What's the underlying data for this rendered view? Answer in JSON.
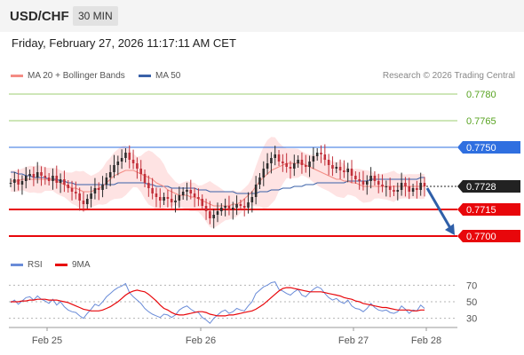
{
  "header": {
    "pair": "USD/CHF",
    "timeframe": "30 MIN",
    "datetime": "Friday, February 27, 2026 11:17:11 AM CET"
  },
  "legend": {
    "ma20": "MA 20 + Bollinger Bands",
    "ma50": "MA 50",
    "copyright": "Research © 2026 Trading Central"
  },
  "rsi_legend": {
    "rsi": "RSI",
    "ma": "9MA"
  },
  "colors": {
    "ma20": "#f48c84",
    "bands": "#fdd9da",
    "ma50": "#3a61a8",
    "resistance": "#9ccd72",
    "pivot": "#2f6fe0",
    "support": "#e8070b",
    "last": "#222222",
    "candle_up": "#2d2d2d",
    "candle_down": "#c2303a",
    "arrow": "#2f5fa8"
  },
  "chart_data": [
    {
      "type": "candlestick",
      "title": "USD/CHF",
      "x_ticks": [
        "Feb 25",
        "Feb 26",
        "Feb 27",
        "Feb 28"
      ],
      "ylim": [
        0.769,
        0.7788
      ],
      "levels": [
        {
          "label": "0.7780",
          "value": 0.778,
          "kind": "resistance"
        },
        {
          "label": "0.7765",
          "value": 0.7765,
          "kind": "resistance"
        },
        {
          "label": "0.7750",
          "value": 0.775,
          "kind": "pivot"
        },
        {
          "label": "0.7728",
          "value": 0.7728,
          "kind": "last"
        },
        {
          "label": "0.7715",
          "value": 0.7715,
          "kind": "support"
        },
        {
          "label": "0.7700",
          "value": 0.77,
          "kind": "support"
        }
      ],
      "close": [
        0.773,
        0.7732,
        0.7729,
        0.7731,
        0.7734,
        0.7735,
        0.7733,
        0.7736,
        0.7734,
        0.7733,
        0.7731,
        0.7734,
        0.773,
        0.7732,
        0.7729,
        0.7727,
        0.7725,
        0.7724,
        0.772,
        0.7718,
        0.7721,
        0.7724,
        0.7727,
        0.7726,
        0.7729,
        0.7733,
        0.7736,
        0.774,
        0.7742,
        0.7744,
        0.7747,
        0.7743,
        0.7741,
        0.7738,
        0.7735,
        0.773,
        0.7727,
        0.7724,
        0.7722,
        0.772,
        0.7722,
        0.7721,
        0.7719,
        0.772,
        0.7723,
        0.7725,
        0.7726,
        0.7724,
        0.7722,
        0.7721,
        0.7717,
        0.7714,
        0.771,
        0.7712,
        0.7714,
        0.7716,
        0.7717,
        0.7715,
        0.7716,
        0.7718,
        0.7717,
        0.7716,
        0.7719,
        0.7722,
        0.7729,
        0.7733,
        0.7738,
        0.7741,
        0.7744,
        0.7746,
        0.7742,
        0.7741,
        0.7739,
        0.7738,
        0.7741,
        0.7743,
        0.774,
        0.7739,
        0.7742,
        0.7745,
        0.7747,
        0.7746,
        0.7743,
        0.774,
        0.7738,
        0.7739,
        0.7737,
        0.7736,
        0.7738,
        0.7734,
        0.7732,
        0.7731,
        0.7729,
        0.7731,
        0.7734,
        0.7731,
        0.7729,
        0.7728,
        0.7728,
        0.7726,
        0.7725,
        0.7726,
        0.773,
        0.7728,
        0.7725,
        0.7727,
        0.7726,
        0.773,
        0.7728
      ],
      "ma20": [
        0.7731,
        0.7731,
        0.7731,
        0.7732,
        0.7732,
        0.7732,
        0.7732,
        0.7732,
        0.7732,
        0.7732,
        0.7732,
        0.7732,
        0.7731,
        0.773,
        0.7729,
        0.7728,
        0.7727,
        0.7727,
        0.7726,
        0.7725,
        0.7725,
        0.7725,
        0.7726,
        0.7727,
        0.7728,
        0.773,
        0.7732,
        0.7734,
        0.7735,
        0.7736,
        0.7737,
        0.7737,
        0.7737,
        0.7736,
        0.7735,
        0.7734,
        0.7733,
        0.7732,
        0.773,
        0.7729,
        0.7728,
        0.7726,
        0.7725,
        0.7724,
        0.7723,
        0.7723,
        0.7723,
        0.7722,
        0.7722,
        0.7721,
        0.772,
        0.7719,
        0.7718,
        0.7717,
        0.7717,
        0.7717,
        0.7717,
        0.7717,
        0.7718,
        0.7718,
        0.7719,
        0.7721,
        0.7723,
        0.7725,
        0.7728,
        0.7731,
        0.7733,
        0.7735,
        0.7737,
        0.7738,
        0.7739,
        0.774,
        0.7741,
        0.7741,
        0.7741,
        0.7741,
        0.7741,
        0.774,
        0.7739,
        0.7738,
        0.7737,
        0.7736,
        0.7735,
        0.7734,
        0.7733,
        0.7732,
        0.7732,
        0.7731,
        0.7731,
        0.773,
        0.773,
        0.7729,
        0.7728,
        0.7728,
        0.7728,
        0.7728,
        0.7728,
        0.7728,
        0.7728,
        0.7728,
        0.7728,
        0.7728,
        0.7728,
        0.7728,
        0.7728,
        0.7728,
        0.7728,
        0.7728,
        0.7728
      ],
      "ma50": [
        0.7736,
        0.7736,
        0.7735,
        0.7735,
        0.7734,
        0.7734,
        0.7733,
        0.7733,
        0.7733,
        0.7733,
        0.7732,
        0.7732,
        0.7732,
        0.7731,
        0.7731,
        0.773,
        0.773,
        0.7729,
        0.7729,
        0.7729,
        0.7729,
        0.7729,
        0.7729,
        0.7729,
        0.7729,
        0.7729,
        0.7729,
        0.7729,
        0.773,
        0.773,
        0.773,
        0.773,
        0.773,
        0.773,
        0.773,
        0.773,
        0.7729,
        0.7729,
        0.7728,
        0.7728,
        0.7728,
        0.7728,
        0.7727,
        0.7727,
        0.7727,
        0.7727,
        0.7727,
        0.7727,
        0.7727,
        0.7726,
        0.7726,
        0.7726,
        0.7725,
        0.7725,
        0.7725,
        0.7725,
        0.7725,
        0.7725,
        0.7725,
        0.7724,
        0.7724,
        0.7724,
        0.7724,
        0.7724,
        0.7724,
        0.7725,
        0.7725,
        0.7725,
        0.7726,
        0.7726,
        0.7726,
        0.7727,
        0.7727,
        0.7727,
        0.7728,
        0.7728,
        0.7728,
        0.7729,
        0.7729,
        0.7729,
        0.773,
        0.773,
        0.773,
        0.773,
        0.773,
        0.773,
        0.773,
        0.773,
        0.7731,
        0.7731,
        0.7731,
        0.7731,
        0.7731,
        0.7731,
        0.7732,
        0.7732,
        0.7732,
        0.7732,
        0.7732,
        0.7732,
        0.7732,
        0.7732,
        0.7732,
        0.7732,
        0.7732,
        0.7732,
        0.7732,
        0.7733,
        0.7733
      ]
    },
    {
      "type": "line",
      "title": "RSI",
      "y_ticks": [
        "70",
        "50",
        "30"
      ],
      "ylim": [
        20,
        80
      ],
      "series": [
        {
          "name": "RSI",
          "values": [
            49,
            52,
            47,
            51,
            55,
            56,
            52,
            57,
            53,
            51,
            48,
            53,
            46,
            50,
            44,
            40,
            38,
            37,
            33,
            30,
            36,
            41,
            47,
            45,
            50,
            56,
            60,
            64,
            67,
            69,
            72,
            61,
            56,
            52,
            48,
            42,
            38,
            35,
            33,
            31,
            35,
            34,
            31,
            34,
            40,
            43,
            45,
            41,
            38,
            37,
            31,
            28,
            24,
            30,
            34,
            38,
            40,
            36,
            38,
            42,
            40,
            39,
            45,
            50,
            60,
            64,
            68,
            70,
            73,
            74,
            65,
            63,
            60,
            58,
            62,
            65,
            58,
            56,
            61,
            65,
            68,
            66,
            60,
            55,
            52,
            54,
            50,
            48,
            52,
            45,
            42,
            41,
            38,
            42,
            48,
            43,
            40,
            39,
            40,
            37,
            36,
            38,
            45,
            41,
            36,
            40,
            39,
            46,
            42
          ]
        },
        {
          "name": "9MA",
          "values": [
            50,
            50,
            50,
            51,
            51,
            52,
            52,
            53,
            53,
            53,
            52,
            52,
            52,
            51,
            50,
            49,
            47,
            45,
            43,
            41,
            40,
            39,
            39,
            39,
            40,
            42,
            44,
            47,
            50,
            54,
            58,
            61,
            63,
            64,
            63,
            62,
            59,
            55,
            51,
            46,
            42,
            40,
            37,
            35,
            34,
            34,
            35,
            36,
            37,
            38,
            38,
            37,
            35,
            34,
            33,
            33,
            33,
            34,
            34,
            35,
            36,
            37,
            38,
            39,
            41,
            44,
            47,
            51,
            55,
            59,
            63,
            66,
            67,
            67,
            66,
            65,
            64,
            63,
            62,
            62,
            62,
            62,
            61,
            60,
            59,
            58,
            57,
            55,
            54,
            53,
            51,
            50,
            48,
            47,
            46,
            45,
            44,
            43,
            43,
            42,
            41,
            40,
            40,
            40,
            40,
            39,
            39,
            40,
            40
          ]
        }
      ]
    }
  ]
}
